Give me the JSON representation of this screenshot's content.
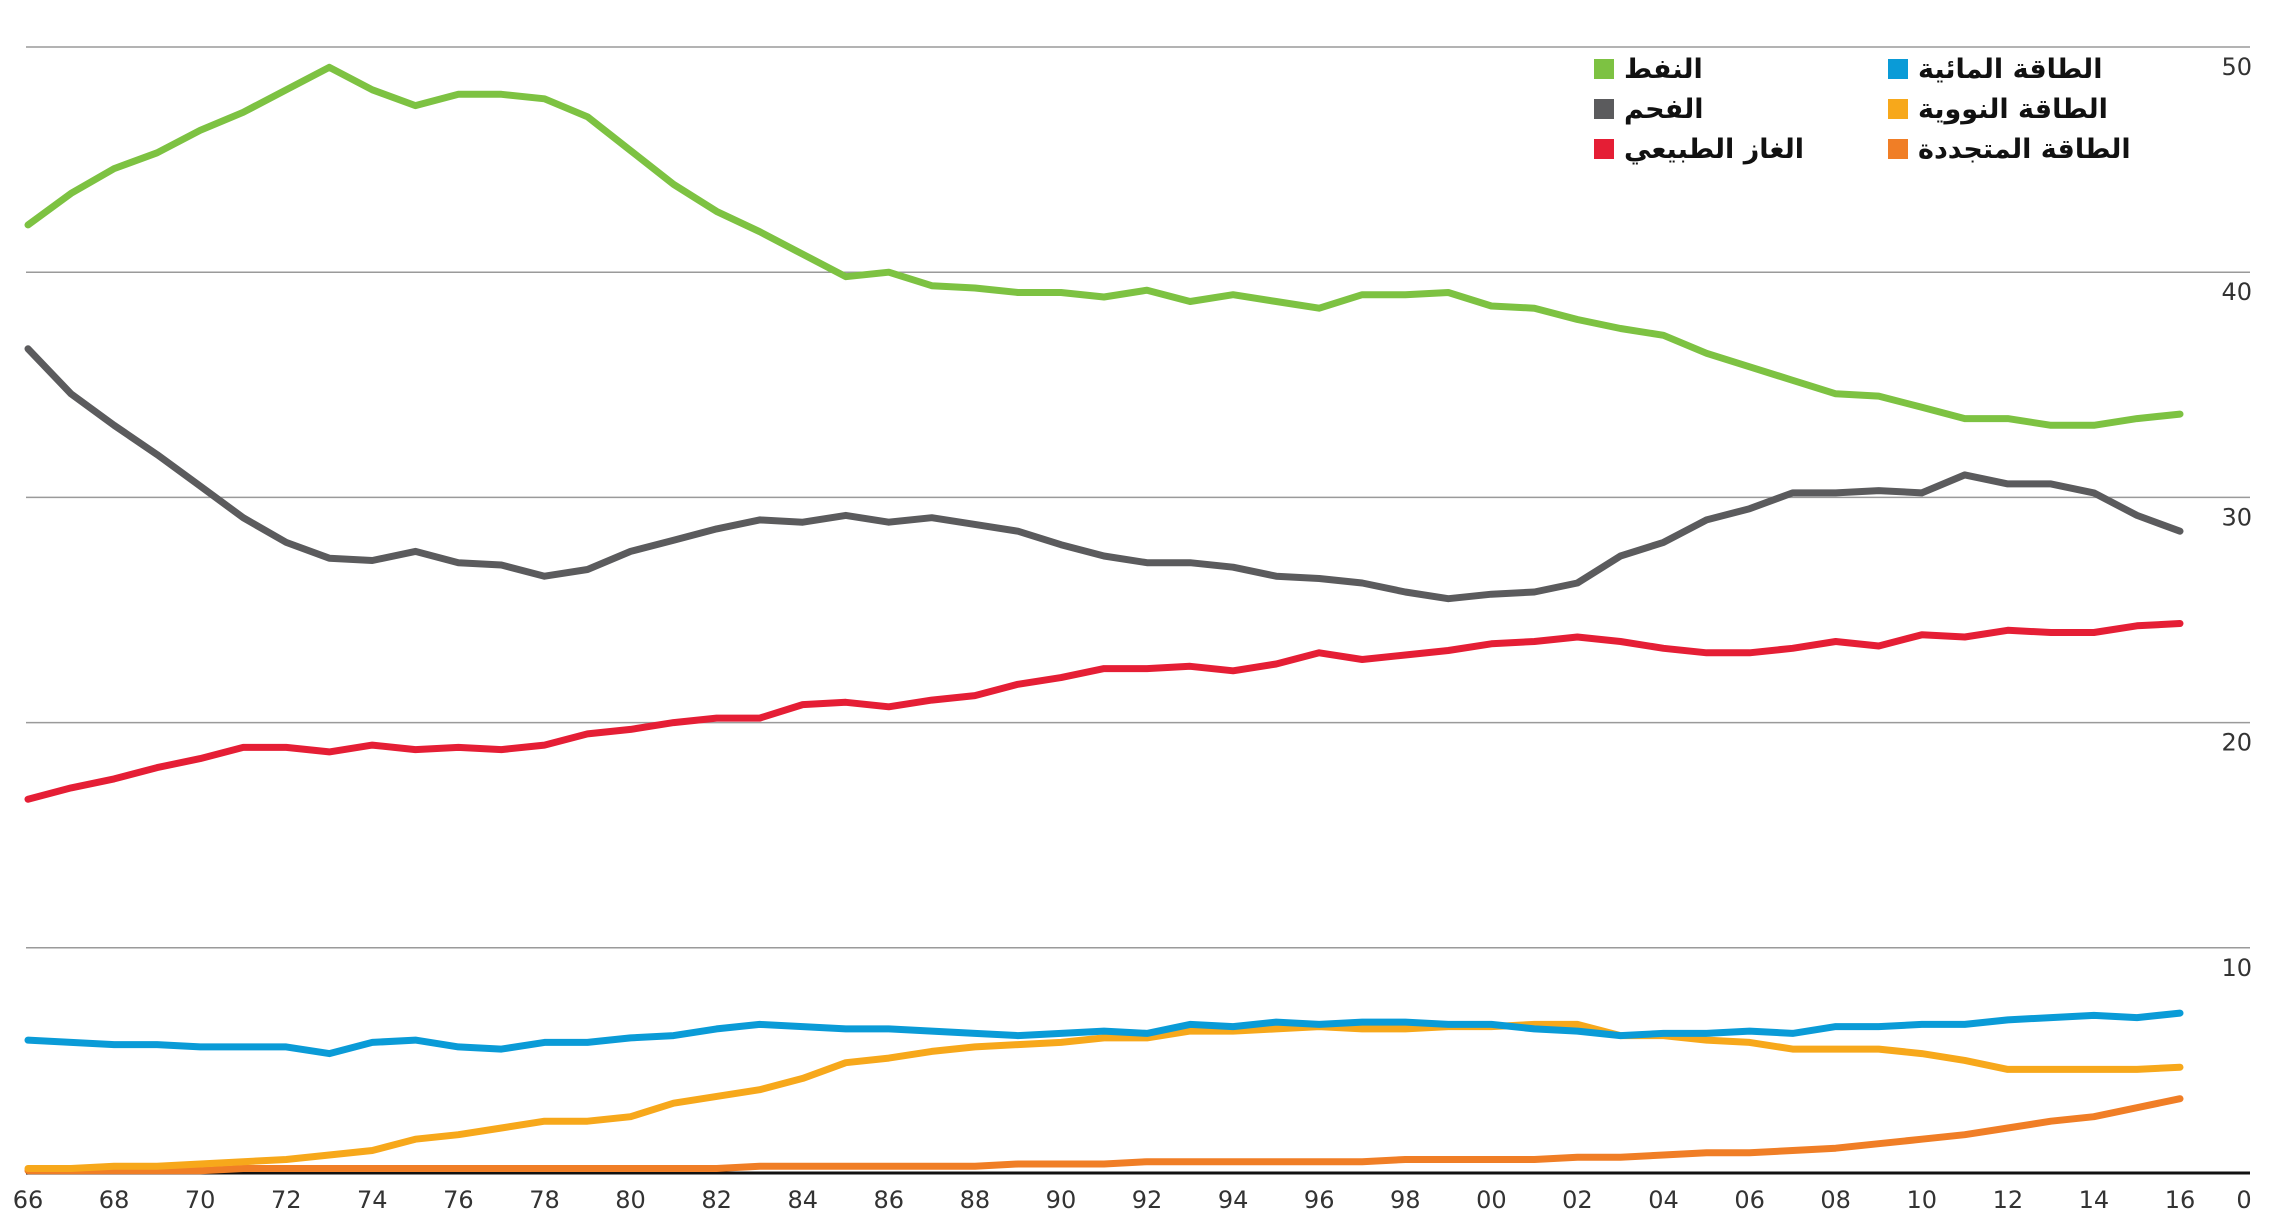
{
  "chart_data": {
    "type": "line",
    "x_tick_labels": [
      "66",
      "68",
      "70",
      "72",
      "74",
      "76",
      "78",
      "80",
      "82",
      "84",
      "86",
      "88",
      "90",
      "92",
      "94",
      "96",
      "98",
      "00",
      "02",
      "04",
      "06",
      "08",
      "10",
      "12",
      "14",
      "16"
    ],
    "x_axis_end_label": "0",
    "y_ticks": [
      {
        "value": 10,
        "label": "10"
      },
      {
        "value": 20,
        "label": "20"
      },
      {
        "value": 30,
        "label": "30"
      },
      {
        "value": 40,
        "label": "40"
      },
      {
        "value": 50,
        "label": "50"
      }
    ],
    "ylim": [
      0,
      50
    ],
    "x_start_year": 1966,
    "x_end_year": 2016,
    "grid": true,
    "legend_position": "top-right",
    "series": [
      {
        "name": "النفط",
        "color": "#7dc242",
        "values": [
          42.1,
          43.5,
          44.6,
          45.3,
          46.3,
          47.1,
          48.1,
          49.1,
          48.1,
          47.4,
          47.9,
          47.9,
          47.7,
          46.9,
          45.4,
          43.9,
          42.7,
          41.8,
          40.8,
          39.8,
          40.0,
          39.4,
          39.3,
          39.1,
          39.1,
          38.9,
          39.2,
          38.7,
          39.0,
          38.7,
          38.4,
          39.0,
          39.0,
          39.1,
          38.5,
          38.4,
          37.9,
          37.5,
          37.2,
          36.4,
          35.8,
          35.2,
          34.6,
          34.5,
          34.0,
          33.5,
          33.5,
          33.2,
          33.2,
          33.5,
          33.7
        ]
      },
      {
        "name": "الفحم",
        "color": "#5b5b5d",
        "values": [
          36.6,
          34.6,
          33.2,
          31.9,
          30.5,
          29.1,
          28.0,
          27.3,
          27.2,
          27.6,
          27.1,
          27.0,
          26.5,
          26.8,
          27.6,
          28.1,
          28.6,
          29.0,
          28.9,
          29.2,
          28.9,
          29.1,
          28.8,
          28.5,
          27.9,
          27.4,
          27.1,
          27.1,
          26.9,
          26.5,
          26.4,
          26.2,
          25.8,
          25.5,
          25.7,
          25.8,
          26.2,
          27.4,
          28.0,
          29.0,
          29.5,
          30.2,
          30.2,
          30.3,
          30.2,
          31.0,
          30.6,
          30.6,
          30.2,
          29.2,
          28.5
        ]
      },
      {
        "name": "الغاز الطبيعي",
        "color": "#e51e35",
        "values": [
          16.6,
          17.1,
          17.5,
          18.0,
          18.4,
          18.9,
          18.9,
          18.7,
          19.0,
          18.8,
          18.9,
          18.8,
          19.0,
          19.5,
          19.7,
          20.0,
          20.2,
          20.2,
          20.8,
          20.9,
          20.7,
          21.0,
          21.2,
          21.7,
          22.0,
          22.4,
          22.4,
          22.5,
          22.3,
          22.6,
          23.1,
          22.8,
          23.0,
          23.2,
          23.5,
          23.6,
          23.8,
          23.6,
          23.3,
          23.1,
          23.1,
          23.3,
          23.6,
          23.4,
          23.9,
          23.8,
          24.1,
          24.0,
          24.0,
          24.3,
          24.4
        ]
      },
      {
        "name": "الطاقة المائية",
        "color": "#0a9bd7",
        "values": [
          5.9,
          5.8,
          5.7,
          5.7,
          5.6,
          5.6,
          5.6,
          5.3,
          5.8,
          5.9,
          5.6,
          5.5,
          5.8,
          5.8,
          6.0,
          6.1,
          6.4,
          6.6,
          6.5,
          6.4,
          6.4,
          6.3,
          6.2,
          6.1,
          6.2,
          6.3,
          6.2,
          6.6,
          6.5,
          6.7,
          6.6,
          6.7,
          6.7,
          6.6,
          6.6,
          6.4,
          6.3,
          6.1,
          6.2,
          6.2,
          6.3,
          6.2,
          6.5,
          6.5,
          6.6,
          6.6,
          6.8,
          6.9,
          7.0,
          6.9,
          7.1
        ]
      },
      {
        "name": "الطاقة النووية",
        "color": "#f7a81b",
        "values": [
          0.2,
          0.2,
          0.3,
          0.3,
          0.4,
          0.5,
          0.6,
          0.8,
          1.0,
          1.5,
          1.7,
          2.0,
          2.3,
          2.3,
          2.5,
          3.1,
          3.4,
          3.7,
          4.2,
          4.9,
          5.1,
          5.4,
          5.6,
          5.7,
          5.8,
          6.0,
          6.0,
          6.3,
          6.3,
          6.4,
          6.5,
          6.4,
          6.4,
          6.5,
          6.5,
          6.6,
          6.6,
          6.1,
          6.1,
          5.9,
          5.8,
          5.5,
          5.5,
          5.5,
          5.3,
          5.0,
          4.6,
          4.6,
          4.6,
          4.6,
          4.7
        ]
      },
      {
        "name": "الطاقة المتجددة",
        "color": "#f07e26",
        "values": [
          0.1,
          0.1,
          0.1,
          0.1,
          0.1,
          0.2,
          0.2,
          0.2,
          0.2,
          0.2,
          0.2,
          0.2,
          0.2,
          0.2,
          0.2,
          0.2,
          0.2,
          0.3,
          0.3,
          0.3,
          0.3,
          0.3,
          0.3,
          0.4,
          0.4,
          0.4,
          0.5,
          0.5,
          0.5,
          0.5,
          0.5,
          0.5,
          0.6,
          0.6,
          0.6,
          0.6,
          0.7,
          0.7,
          0.8,
          0.9,
          0.9,
          1.0,
          1.1,
          1.3,
          1.5,
          1.7,
          2.0,
          2.3,
          2.5,
          2.9,
          3.3
        ]
      }
    ]
  }
}
